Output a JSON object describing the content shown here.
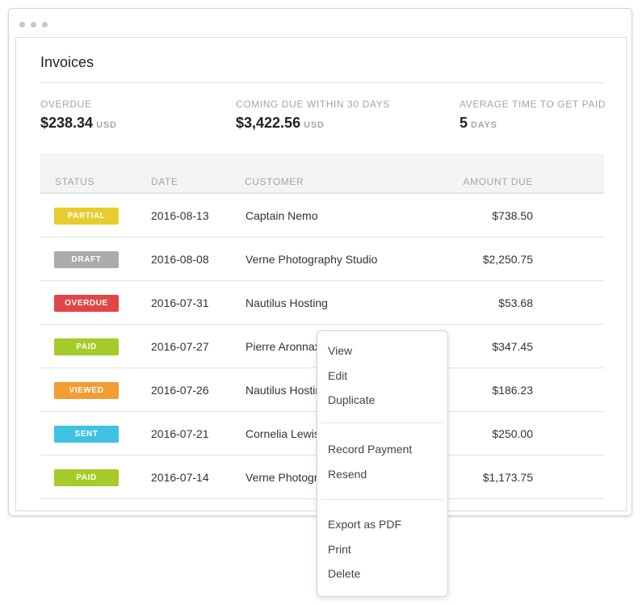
{
  "page": {
    "title": "Invoices"
  },
  "stats": [
    {
      "label": "OVERDUE",
      "value": "$238.34",
      "unit": "USD"
    },
    {
      "label": "COMING DUE WITHIN 30 DAYS",
      "value": "$3,422.56",
      "unit": "USD"
    },
    {
      "label": "AVERAGE TIME TO GET PAID",
      "value": "5",
      "unit": "DAYS"
    }
  ],
  "table": {
    "columns": {
      "status": "STATUS",
      "date": "DATE",
      "customer": "CUSTOMER",
      "amount": "AMOUNT DUE"
    },
    "rows": [
      {
        "status": "PARTIAL",
        "date": "2016-08-13",
        "customer": "Captain Nemo",
        "amount": "$738.50"
      },
      {
        "status": "DRAFT",
        "date": "2016-08-08",
        "customer": "Verne Photography Studio",
        "amount": "$2,250.75"
      },
      {
        "status": "OVERDUE",
        "date": "2016-07-31",
        "customer": "Nautilus Hosting",
        "amount": "$53.68"
      },
      {
        "status": "PAID",
        "date": "2016-07-27",
        "customer": "Pierre Aronnax",
        "amount": "$347.45"
      },
      {
        "status": "VIEWED",
        "date": "2016-07-26",
        "customer": "Nautilus Hosting",
        "amount": "$186.23"
      },
      {
        "status": "SENT",
        "date": "2016-07-21",
        "customer": "Cornelia Lewis",
        "amount": "$250.00"
      },
      {
        "status": "PAID",
        "date": "2016-07-14",
        "customer": "Verne Photography Studio",
        "amount": "$1,173.75"
      }
    ]
  },
  "status_colors": {
    "PARTIAL": "#e8cc2e",
    "DRAFT": "#a9abad",
    "OVERDUE": "#e04646",
    "PAID": "#a5cc28",
    "VIEWED": "#f29c33",
    "SENT": "#3ec3e3"
  },
  "context_menu": {
    "groups": [
      [
        "View",
        "Edit",
        "Duplicate"
      ],
      [
        "Record Payment",
        "Resend"
      ],
      [
        "Export as PDF",
        "Print",
        "Delete"
      ]
    ]
  }
}
